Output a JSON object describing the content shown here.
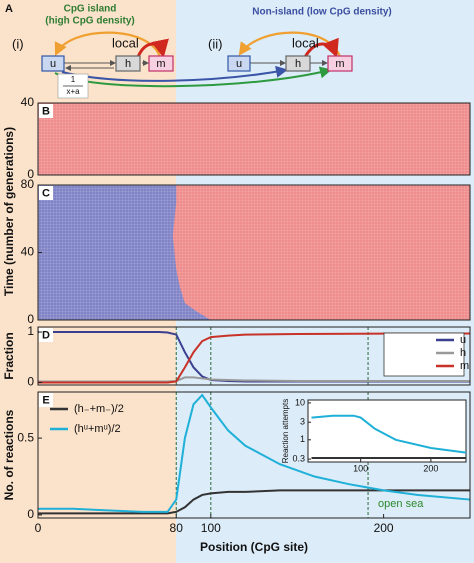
{
  "panel_a": {
    "label": "A",
    "island_title": [
      "CpG island",
      "(high CpG density)"
    ],
    "nonisland_title": "Non-island (low CpG density)",
    "left": {
      "tag": "(i)",
      "local": "local",
      "u": "u",
      "h": "h",
      "m": "m"
    },
    "right": {
      "tag": "(ii)",
      "local": "local",
      "u": "u",
      "h": "h",
      "m": "m"
    },
    "rate_numerator": "1",
    "rate_denominator": "x+a"
  },
  "chart_data": [
    {
      "type": "heatmap",
      "label": "B",
      "xlim": [
        0,
        250
      ],
      "ylim": [
        0,
        40
      ],
      "yticks": [
        0,
        40
      ],
      "color": "#ef8c8c"
    },
    {
      "type": "heatmap",
      "label": "C",
      "ylabel": "Time (number of generations)",
      "xlim": [
        0,
        250
      ],
      "ylim": [
        0,
        80
      ],
      "yticks": [
        0,
        40,
        80
      ],
      "color": "#ef8c8c",
      "region_color": "#8083c6",
      "boundary": {
        "time": [
          0,
          5,
          10,
          20,
          30,
          40,
          50,
          60,
          70,
          80
        ],
        "position": [
          100,
          92,
          85,
          82,
          80,
          79,
          78,
          79,
          80,
          80
        ]
      }
    },
    {
      "type": "line",
      "label": "D",
      "ylabel": "Fraction",
      "xlim": [
        0,
        250
      ],
      "ylim": [
        -0.05,
        1.1
      ],
      "yticks": [
        0,
        1
      ],
      "legend": "upper right",
      "vlines": [
        80,
        100,
        191
      ],
      "x": [
        0,
        20,
        40,
        60,
        70,
        75,
        80,
        85,
        90,
        95,
        100,
        110,
        120,
        150,
        200,
        250
      ],
      "series": [
        {
          "name": "u",
          "color": "#3b3f8f",
          "values": [
            1,
            1,
            1,
            1,
            1,
            0.99,
            0.95,
            0.6,
            0.3,
            0.12,
            0.05,
            0.03,
            0.02,
            0.02,
            0.02,
            0.02
          ]
        },
        {
          "name": "h",
          "color": "#999999",
          "values": [
            0.02,
            0.02,
            0.02,
            0.02,
            0.02,
            0.02,
            0.03,
            0.1,
            0.1,
            0.08,
            0.06,
            0.05,
            0.04,
            0.03,
            0.03,
            0.03
          ]
        },
        {
          "name": "m",
          "color": "#c83228",
          "values": [
            0,
            0,
            0,
            0,
            0,
            0,
            0.02,
            0.3,
            0.6,
            0.82,
            0.9,
            0.93,
            0.95,
            0.96,
            0.97,
            0.97
          ]
        }
      ]
    },
    {
      "type": "line",
      "label": "E",
      "ylabel": "No. of reactions",
      "xlabel": "Position (CpG site)",
      "xlim": [
        0,
        250
      ],
      "ylim": [
        -0.02,
        0.8
      ],
      "yticks": [
        0,
        0.5
      ],
      "xticks": [
        0,
        80,
        100,
        200
      ],
      "legend": "upper left",
      "vlines": [
        80,
        100,
        191
      ],
      "annotation": "open sea",
      "x": [
        0,
        20,
        40,
        60,
        70,
        75,
        80,
        85,
        90,
        95,
        100,
        110,
        120,
        140,
        160,
        180,
        200,
        220,
        250
      ],
      "series": [
        {
          "name": "(h₋+m₋)/2",
          "color": "#333333",
          "values": [
            0.01,
            0.01,
            0.01,
            0.01,
            0.01,
            0.01,
            0.02,
            0.05,
            0.1,
            0.13,
            0.14,
            0.15,
            0.15,
            0.16,
            0.16,
            0.16,
            0.16,
            0.16,
            0.16
          ]
        },
        {
          "name": "(hᵘ+mᵘ)/2",
          "color": "#1fb0d8",
          "values": [
            0.04,
            0.04,
            0.03,
            0.02,
            0.02,
            0.02,
            0.1,
            0.5,
            0.72,
            0.78,
            0.7,
            0.55,
            0.45,
            0.33,
            0.25,
            0.2,
            0.16,
            0.13,
            0.1
          ]
        }
      ],
      "inset": {
        "ylabel": "Reaction attempts",
        "log_y": true,
        "xlim": [
          25,
          250
        ],
        "ylim": [
          0.25,
          12
        ],
        "xticks": [
          100,
          200
        ],
        "yticks": [
          0.3,
          1,
          3,
          10
        ],
        "x": [
          30,
          60,
          90,
          100,
          120,
          150,
          200,
          250
        ],
        "series": [
          {
            "color": "#333333",
            "values": [
              0.32,
              0.32,
              0.32,
              0.32,
              0.32,
              0.32,
              0.32,
              0.32
            ]
          },
          {
            "color": "#1fb0d8",
            "values": [
              4,
              4.5,
              4.5,
              4,
              2,
              1,
              0.6,
              0.45
            ]
          }
        ]
      }
    }
  ]
}
